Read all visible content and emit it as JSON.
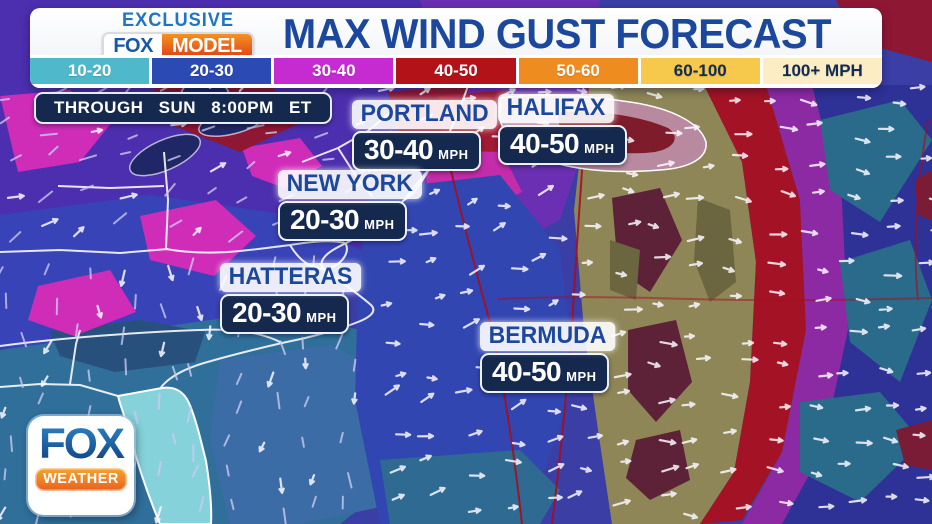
{
  "header": {
    "exclusive_label": "EXCLUSIVE",
    "fox_label": "FOX",
    "model_label": "MODEL",
    "title": "MAX WIND GUST FORECAST"
  },
  "legend": {
    "segments": [
      {
        "label": "10-20",
        "color": "#4fb9cb",
        "text": "#ffffff"
      },
      {
        "label": "20-30",
        "color": "#2b4ab4",
        "text": "#ffffff"
      },
      {
        "label": "30-40",
        "color": "#c52bd1",
        "text": "#ffffff"
      },
      {
        "label": "40-50",
        "color": "#b41219",
        "text": "#ffffff"
      },
      {
        "label": "50-60",
        "color": "#ef8c1f",
        "text": "#ffffff"
      },
      {
        "label": "60-100",
        "color": "#f6c94c",
        "text": "#132a52"
      },
      {
        "label": "100+ MPH",
        "color": "#fdedc4",
        "text": "#132a52"
      }
    ]
  },
  "timeframe": {
    "text": "THROUGH SUN 8:00PM ET"
  },
  "callouts": [
    {
      "city": "PORTLAND",
      "value": "30-40",
      "unit": "MPH"
    },
    {
      "city": "HALIFAX",
      "value": "40-50",
      "unit": "MPH"
    },
    {
      "city": "NEW YORK",
      "value": "20-30",
      "unit": "MPH"
    },
    {
      "city": "HATTERAS",
      "value": "20-30",
      "unit": "MPH"
    },
    {
      "city": "BERMUDA",
      "value": "40-50",
      "unit": "MPH"
    }
  ],
  "watermark": {
    "brand": "FOX",
    "sub": "WEATHER"
  },
  "colors": {
    "title_blue": "#1b479c",
    "exclusive_blue": "#1f74c4",
    "badge_navy": "#15294e",
    "brand_orange": "#e8611c"
  }
}
